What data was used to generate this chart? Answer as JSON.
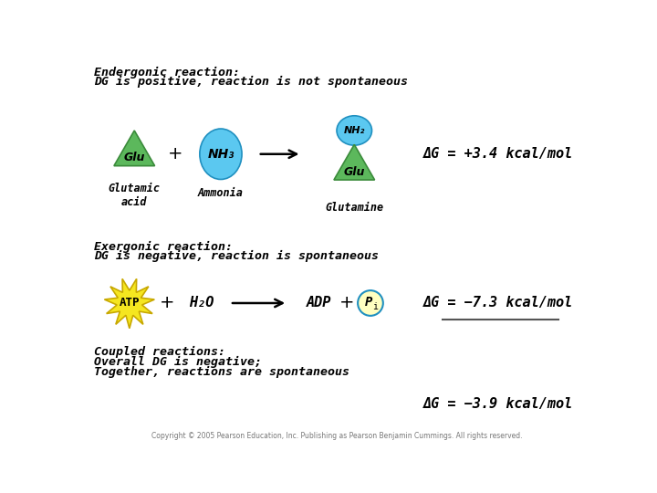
{
  "bg_color": "#ffffff",
  "title1_line1": "Endergonic reaction:",
  "title1_line2": "DG is positive, reaction is not spontaneous",
  "title2_line1": "Exergonic reaction:",
  "title2_line2": "DG is negative, reaction is spontaneous",
  "title3_line1": "Coupled reactions:",
  "title3_line2": "Overall DG is negative;",
  "title3_line3": "Together, reactions are spontaneous",
  "green_color": "#5cb85c",
  "green_dark": "#3a8a3a",
  "cyan_color": "#5bc8f0",
  "cyan_dark": "#2090c0",
  "yellow_color": "#f5e620",
  "yellow_dark": "#c8a800",
  "dG1": "ΔG = +3.4 kcal/mol",
  "dG2": "ΔG = −7.3 kcal/mol",
  "dG3": "ΔG = −3.9 kcal/mol",
  "copyright": "Copyright © 2005 Pearson Education, Inc. Publishing as Pearson Benjamin Cummings. All rights reserved.",
  "font_color": "#000000",
  "label_glutamic": "Glutamic\nacid",
  "label_ammonia": "Ammonia",
  "label_glutamine": "Glutamine",
  "glu_text": "Glu",
  "nh3_text": "NH₃",
  "nh2_text": "NH₂",
  "atp_text": "ATP",
  "h2o_text": "H₂O",
  "adp_text": "ADP",
  "pi_text": "P",
  "pi_sub": "i",
  "title_fontsize": 9.5,
  "label_fontsize": 8.5,
  "dG_fontsize": 11
}
